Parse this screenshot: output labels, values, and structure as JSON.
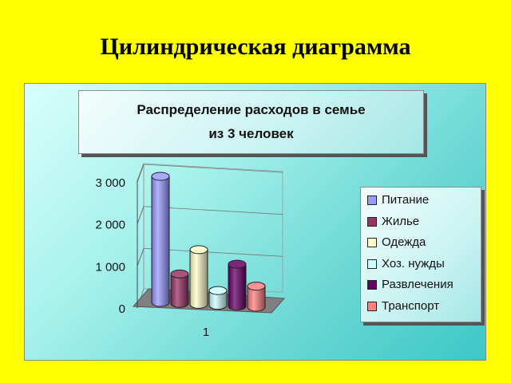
{
  "slide": {
    "title": "Цилиндрическая диаграмма"
  },
  "chart_data": {
    "type": "bar",
    "style": "3d-cylinder",
    "title_lines": [
      "Распределение расходов в семье",
      "из 3 человек"
    ],
    "categories": [
      "1"
    ],
    "series": [
      {
        "name": "Питание",
        "values": [
          3000
        ],
        "color": "#9999ff"
      },
      {
        "name": "Жилье",
        "values": [
          700
        ],
        "color": "#993366"
      },
      {
        "name": "Одежда",
        "values": [
          1300
        ],
        "color": "#ffffcc"
      },
      {
        "name": "Хоз. нужды",
        "values": [
          350
        ],
        "color": "#ccffff"
      },
      {
        "name": "Развлечения",
        "values": [
          1000
        ],
        "color": "#660066"
      },
      {
        "name": "Транспорт",
        "values": [
          500
        ],
        "color": "#ff8080"
      }
    ],
    "y_ticks": [
      "0",
      "1 000",
      "2 000",
      "3 000"
    ],
    "ylim": [
      0,
      3000
    ],
    "grid": true,
    "legend_position": "right"
  }
}
